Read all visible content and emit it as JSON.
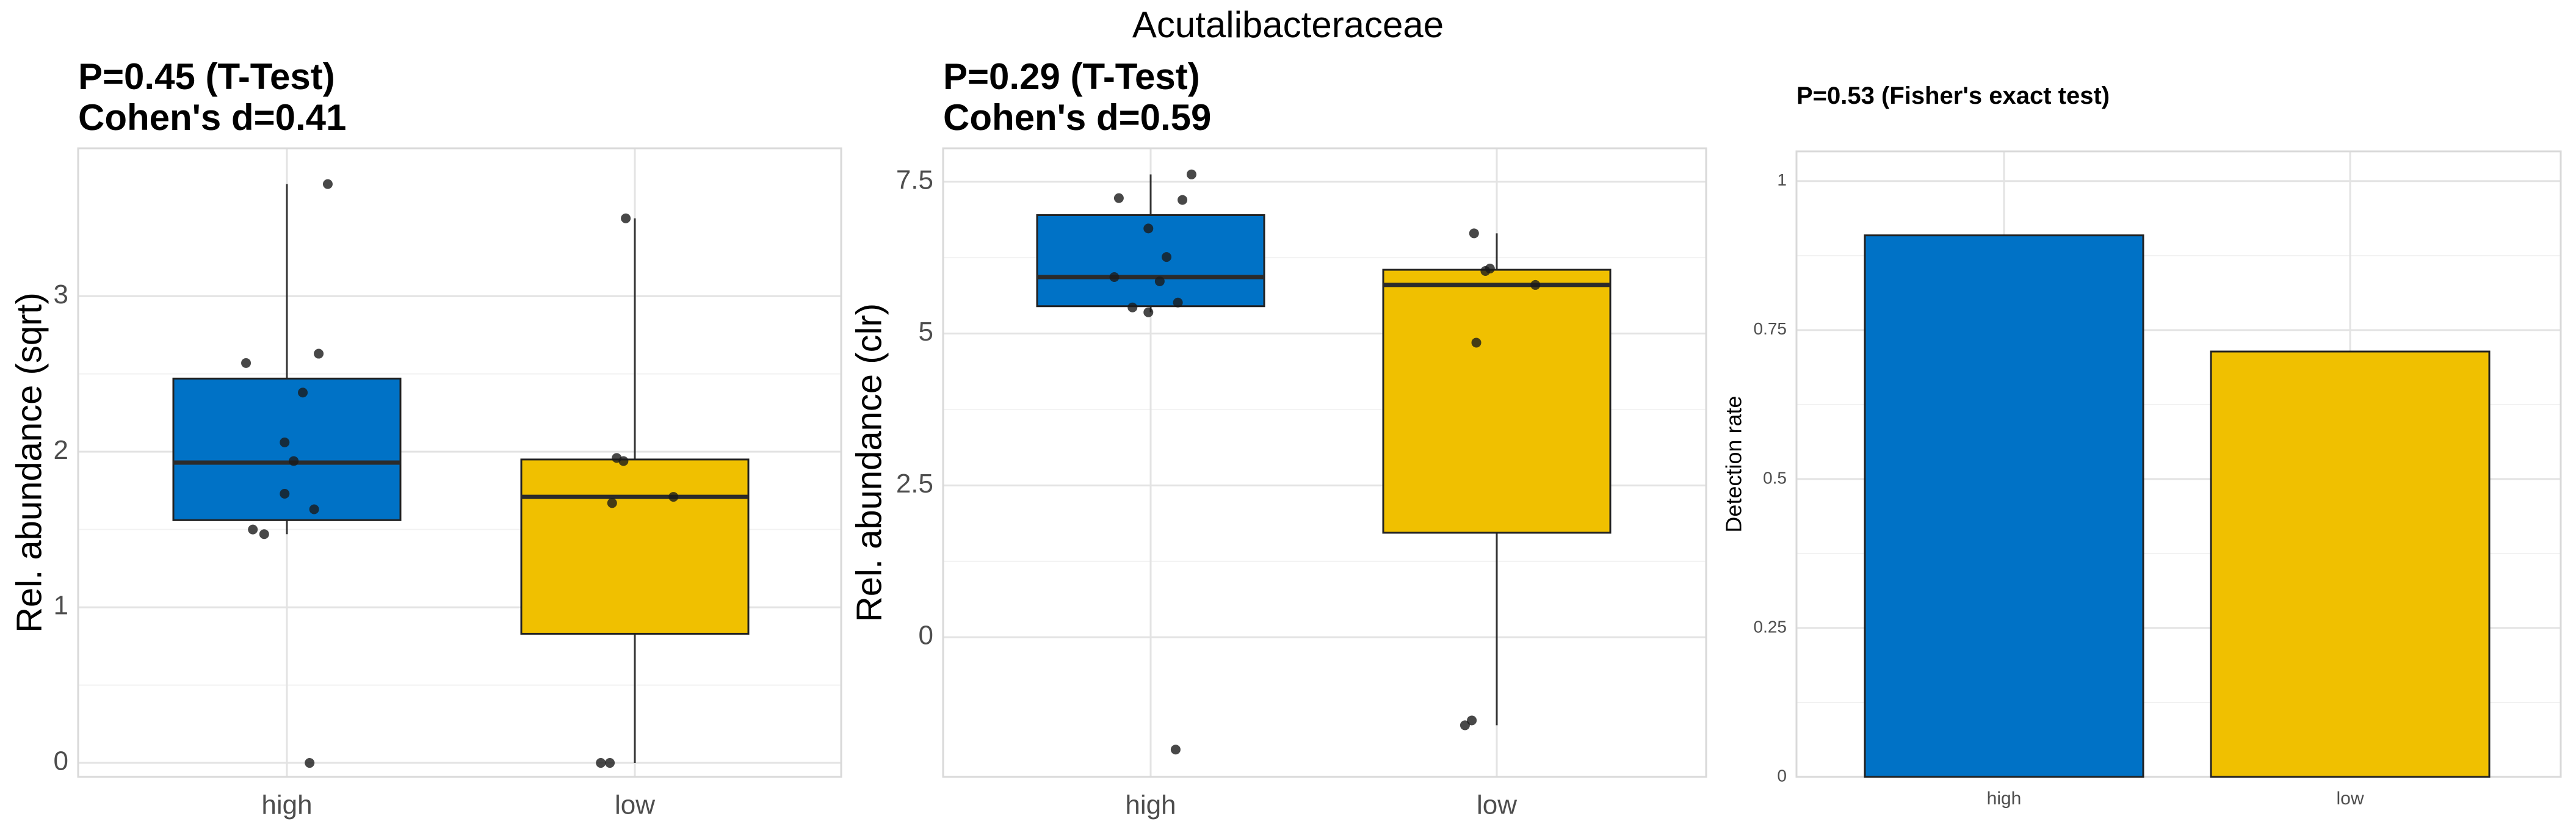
{
  "title": "Acutalibacteraceae",
  "chart_data": [
    {
      "type": "box",
      "title_line1": "P=0.45 (T-Test)",
      "title_line2": "Cohen's d=0.41",
      "ylabel": "Rel. abundance (sqrt)",
      "ylim": [
        -0.09,
        3.95
      ],
      "yticks": [
        0,
        1,
        2,
        3
      ],
      "ytick_labels": [
        "0",
        "1",
        "2",
        "3"
      ],
      "categories": [
        "high",
        "low"
      ],
      "colors": [
        "#0072c6",
        "#f0c000"
      ],
      "boxes": [
        {
          "q1": 1.56,
          "median": 1.93,
          "q3": 2.47,
          "whisker_low": 1.47,
          "whisker_high": 3.72
        },
        {
          "q1": 0.83,
          "median": 1.71,
          "q3": 1.95,
          "whisker_low": 0.0,
          "whisker_high": 3.5
        }
      ],
      "points": [
        [
          {
            "x": -0.18,
            "y": 2.57
          },
          {
            "x": -0.15,
            "y": 1.5
          },
          {
            "x": -0.1,
            "y": 1.47
          },
          {
            "x": -0.01,
            "y": 1.73
          },
          {
            "x": -0.01,
            "y": 2.06
          },
          {
            "x": 0.03,
            "y": 1.94
          },
          {
            "x": 0.07,
            "y": 2.38
          },
          {
            "x": 0.1,
            "y": 0.0
          },
          {
            "x": 0.12,
            "y": 1.63
          },
          {
            "x": 0.14,
            "y": 2.63
          },
          {
            "x": 0.18,
            "y": 3.72
          }
        ],
        [
          {
            "x": -0.15,
            "y": 0.0
          },
          {
            "x": -0.11,
            "y": 0.0
          },
          {
            "x": -0.1,
            "y": 1.67
          },
          {
            "x": -0.08,
            "y": 1.96
          },
          {
            "x": -0.05,
            "y": 1.94
          },
          {
            "x": -0.04,
            "y": 3.5
          },
          {
            "x": 0.17,
            "y": 1.71
          }
        ]
      ]
    },
    {
      "type": "box",
      "title_line1": "P=0.29 (T-Test)",
      "title_line2": "Cohen's d=0.59",
      "ylabel": "Rel. abundance (clr)",
      "ylim": [
        -2.3,
        8.05
      ],
      "yticks": [
        0,
        2.5,
        5,
        7.5
      ],
      "ytick_labels": [
        "0",
        "2.5",
        "5",
        "7.5"
      ],
      "categories": [
        "high",
        "low"
      ],
      "colors": [
        "#0072c6",
        "#f0c000"
      ],
      "boxes": [
        {
          "q1": 5.45,
          "median": 5.93,
          "q3": 6.95,
          "whisker_low": 5.35,
          "whisker_high": 7.62
        },
        {
          "q1": 1.72,
          "median": 5.8,
          "q3": 6.05,
          "whisker_low": -1.45,
          "whisker_high": 6.65
        }
      ],
      "points": [
        [
          {
            "x": -0.16,
            "y": 5.93
          },
          {
            "x": -0.14,
            "y": 7.23
          },
          {
            "x": -0.08,
            "y": 5.43
          },
          {
            "x": -0.01,
            "y": 6.73
          },
          {
            "x": -0.01,
            "y": 5.35
          },
          {
            "x": 0.04,
            "y": 5.86
          },
          {
            "x": 0.07,
            "y": 6.26
          },
          {
            "x": 0.11,
            "y": -1.85
          },
          {
            "x": 0.12,
            "y": 5.51
          },
          {
            "x": 0.14,
            "y": 7.2
          },
          {
            "x": 0.18,
            "y": 7.62
          }
        ],
        [
          {
            "x": -0.14,
            "y": -1.45
          },
          {
            "x": -0.11,
            "y": -1.37
          },
          {
            "x": -0.1,
            "y": 6.65
          },
          {
            "x": -0.09,
            "y": 4.85
          },
          {
            "x": -0.05,
            "y": 6.03
          },
          {
            "x": -0.03,
            "y": 6.07
          },
          {
            "x": 0.17,
            "y": 5.8
          }
        ]
      ]
    },
    {
      "type": "bar",
      "title_line1": "P=0.53 (Fisher's exact test)",
      "ylabel": "Detection rate",
      "ylim": [
        0,
        1.05
      ],
      "yticks": [
        0,
        0.25,
        0.5,
        0.75,
        1
      ],
      "ytick_labels": [
        "0",
        "0.25",
        "0.5",
        "0.75",
        "1"
      ],
      "categories": [
        "high",
        "low"
      ],
      "colors": [
        "#0072c6",
        "#f0c000"
      ],
      "values": [
        0.909,
        0.714
      ]
    }
  ]
}
